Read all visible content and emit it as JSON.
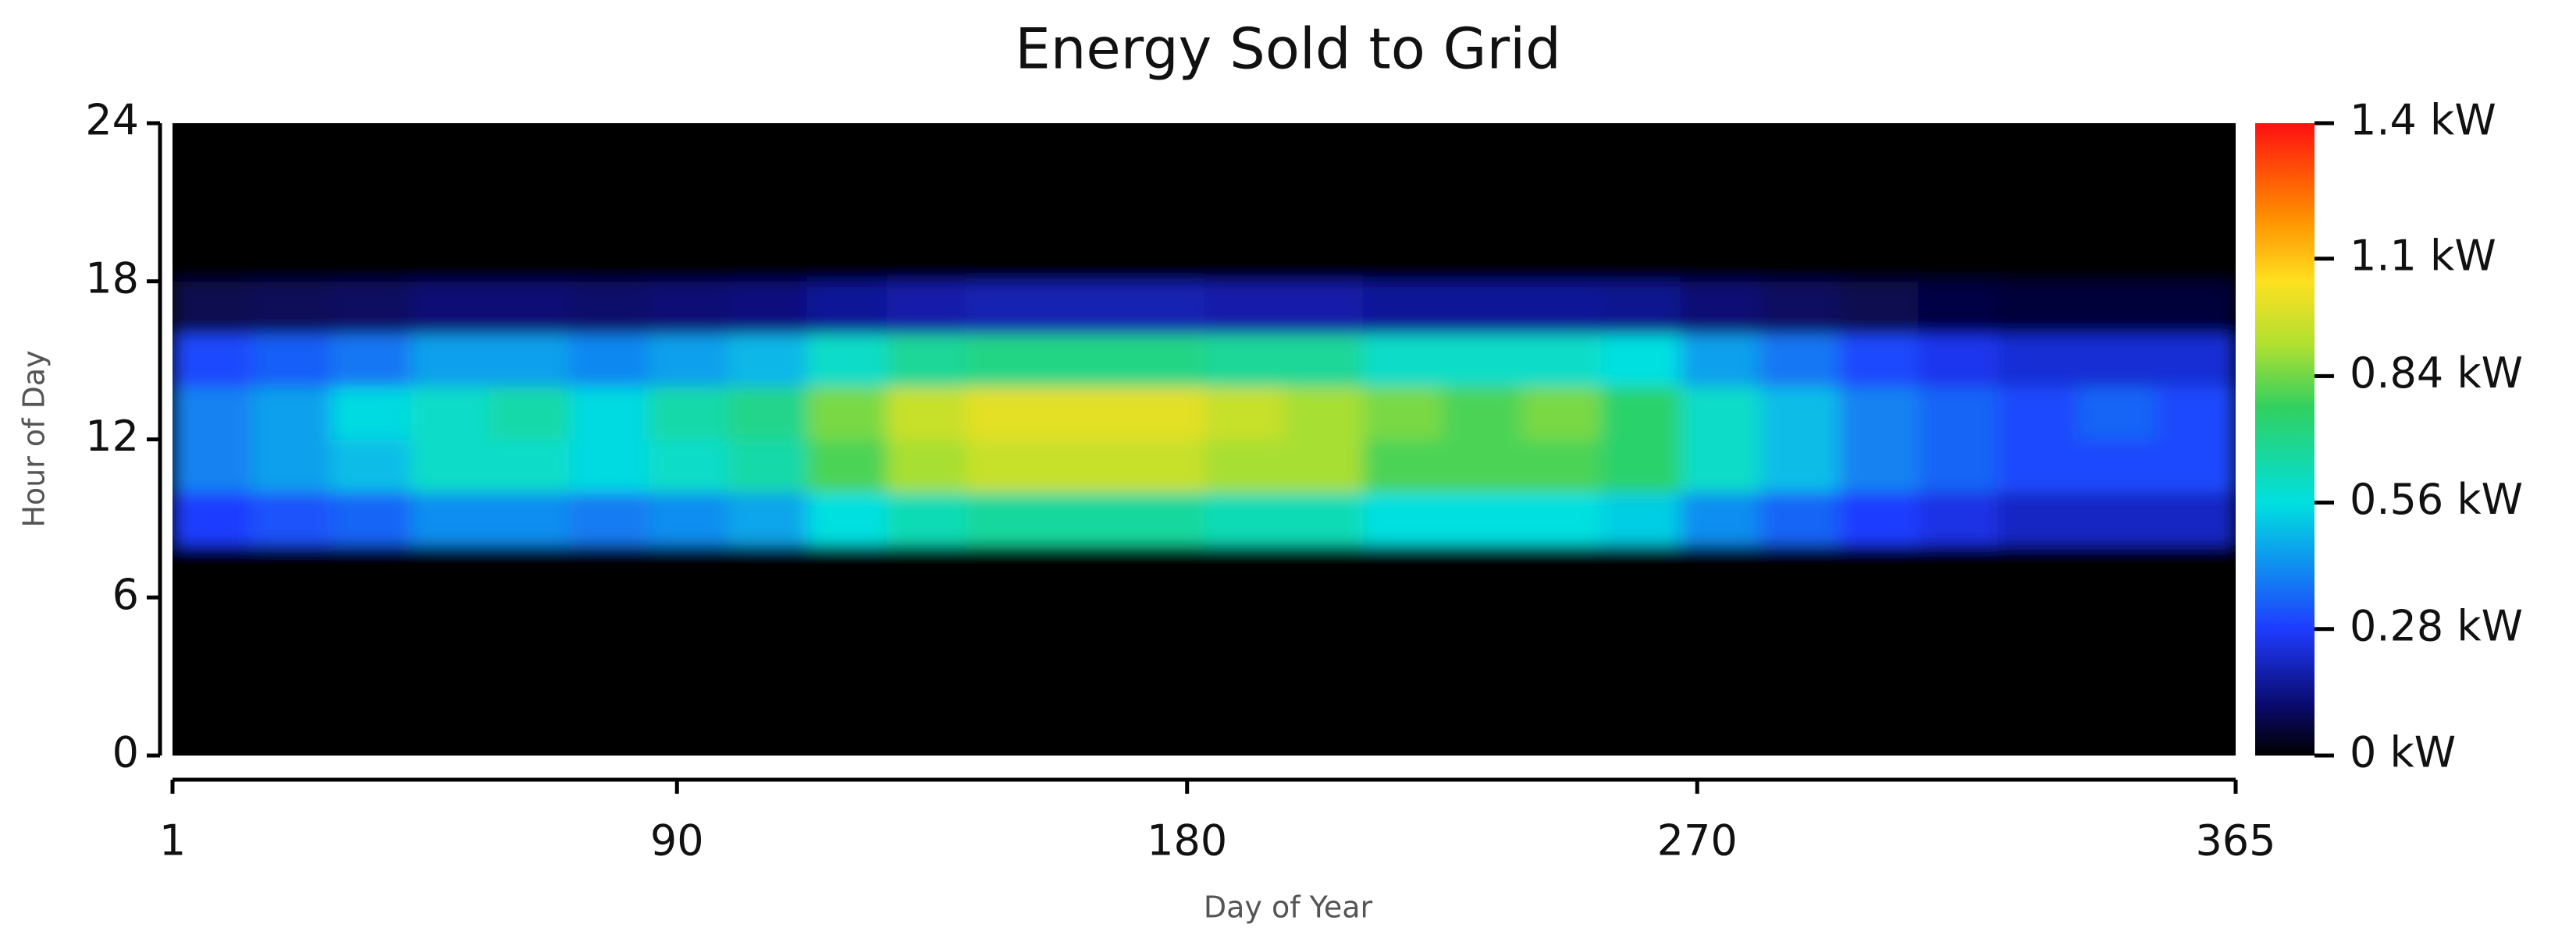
{
  "chart_data": {
    "type": "heatmap",
    "title": "Energy Sold to Grid",
    "x_label": "Day of Year",
    "y_label": "Hour of Day",
    "x_edges": [
      1,
      15,
      29,
      43,
      57,
      71,
      85,
      99,
      113,
      127,
      141,
      155,
      169,
      183,
      197,
      211,
      225,
      239,
      253,
      267,
      281,
      295,
      309,
      323,
      337,
      351,
      365
    ],
    "y_edges": [
      0,
      2,
      4,
      6,
      8,
      10,
      12,
      14,
      16,
      18,
      20,
      22,
      24
    ],
    "z": [
      [
        0,
        0,
        0,
        0,
        0,
        0,
        0,
        0,
        0,
        0,
        0,
        0,
        0,
        0,
        0,
        0,
        0,
        0,
        0,
        0,
        0,
        0,
        0,
        0,
        0,
        0
      ],
      [
        0,
        0,
        0,
        0,
        0,
        0,
        0,
        0,
        0,
        0,
        0,
        0,
        0,
        0,
        0,
        0,
        0,
        0,
        0,
        0,
        0,
        0,
        0,
        0,
        0,
        0
      ],
      [
        0,
        0,
        0,
        0,
        0,
        0,
        0,
        0,
        0,
        0,
        0,
        0,
        0,
        0,
        0,
        0,
        0,
        0,
        0,
        0,
        0,
        0,
        0,
        0,
        0,
        0
      ],
      [
        0,
        0,
        0,
        0,
        0,
        0,
        0,
        0,
        0,
        0,
        0,
        0,
        0,
        0,
        0,
        0,
        0,
        0,
        0,
        0,
        0,
        0,
        0,
        0,
        0,
        0
      ],
      [
        0.28,
        0.32,
        0.35,
        0.42,
        0.42,
        0.39,
        0.42,
        0.46,
        0.56,
        0.63,
        0.67,
        0.67,
        0.67,
        0.63,
        0.63,
        0.56,
        0.56,
        0.56,
        0.53,
        0.42,
        0.35,
        0.28,
        0.25,
        0.21,
        0.21,
        0.21
      ],
      [
        0.4,
        0.45,
        0.5,
        0.6,
        0.6,
        0.55,
        0.6,
        0.65,
        0.8,
        0.9,
        0.95,
        0.95,
        0.95,
        0.9,
        0.9,
        0.8,
        0.8,
        0.8,
        0.75,
        0.6,
        0.5,
        0.4,
        0.35,
        0.3,
        0.3,
        0.3
      ],
      [
        0.4,
        0.45,
        0.55,
        0.6,
        0.65,
        0.55,
        0.65,
        0.7,
        0.85,
        0.95,
        1.0,
        1.0,
        1.0,
        0.95,
        0.9,
        0.85,
        0.8,
        0.85,
        0.75,
        0.6,
        0.5,
        0.4,
        0.35,
        0.3,
        0.35,
        0.3
      ],
      [
        0.3,
        0.34,
        0.38,
        0.45,
        0.45,
        0.41,
        0.45,
        0.49,
        0.6,
        0.68,
        0.71,
        0.71,
        0.71,
        0.68,
        0.68,
        0.6,
        0.6,
        0.6,
        0.56,
        0.45,
        0.38,
        0.3,
        0.26,
        0.23,
        0.23,
        0.23
      ],
      [
        0.08,
        0.09,
        0.1,
        0.12,
        0.12,
        0.11,
        0.12,
        0.13,
        0.16,
        0.18,
        0.19,
        0.19,
        0.19,
        0.18,
        0.18,
        0.16,
        0.16,
        0.16,
        0.15,
        0.12,
        0.1,
        0.08,
        0.07,
        0.06,
        0.06,
        0.06
      ],
      [
        0,
        0,
        0,
        0,
        0,
        0,
        0,
        0,
        0,
        0,
        0,
        0,
        0,
        0,
        0,
        0,
        0,
        0,
        0,
        0,
        0,
        0,
        0,
        0,
        0,
        0
      ],
      [
        0,
        0,
        0,
        0,
        0,
        0,
        0,
        0,
        0,
        0,
        0,
        0,
        0,
        0,
        0,
        0,
        0,
        0,
        0,
        0,
        0,
        0,
        0,
        0,
        0,
        0
      ],
      [
        0,
        0,
        0,
        0,
        0,
        0,
        0,
        0,
        0,
        0,
        0,
        0,
        0,
        0,
        0,
        0,
        0,
        0,
        0,
        0,
        0,
        0,
        0,
        0,
        0,
        0
      ]
    ],
    "xlim": [
      1,
      365
    ],
    "xticks": [
      1,
      90,
      180,
      270,
      365
    ],
    "ylim": [
      0,
      24
    ],
    "yticks": [
      0,
      6,
      12,
      18,
      24
    ],
    "zlim": [
      0,
      1.4
    ],
    "zticks": [
      {
        "value": 0,
        "label": "0 kW"
      },
      {
        "value": 0.28,
        "label": "0.28 kW"
      },
      {
        "value": 0.56,
        "label": "0.56 kW"
      },
      {
        "value": 0.84,
        "label": "0.84 kW"
      },
      {
        "value": 1.1,
        "label": "1.1 kW"
      },
      {
        "value": 1.4,
        "label": "1.4 kW"
      }
    ]
  }
}
